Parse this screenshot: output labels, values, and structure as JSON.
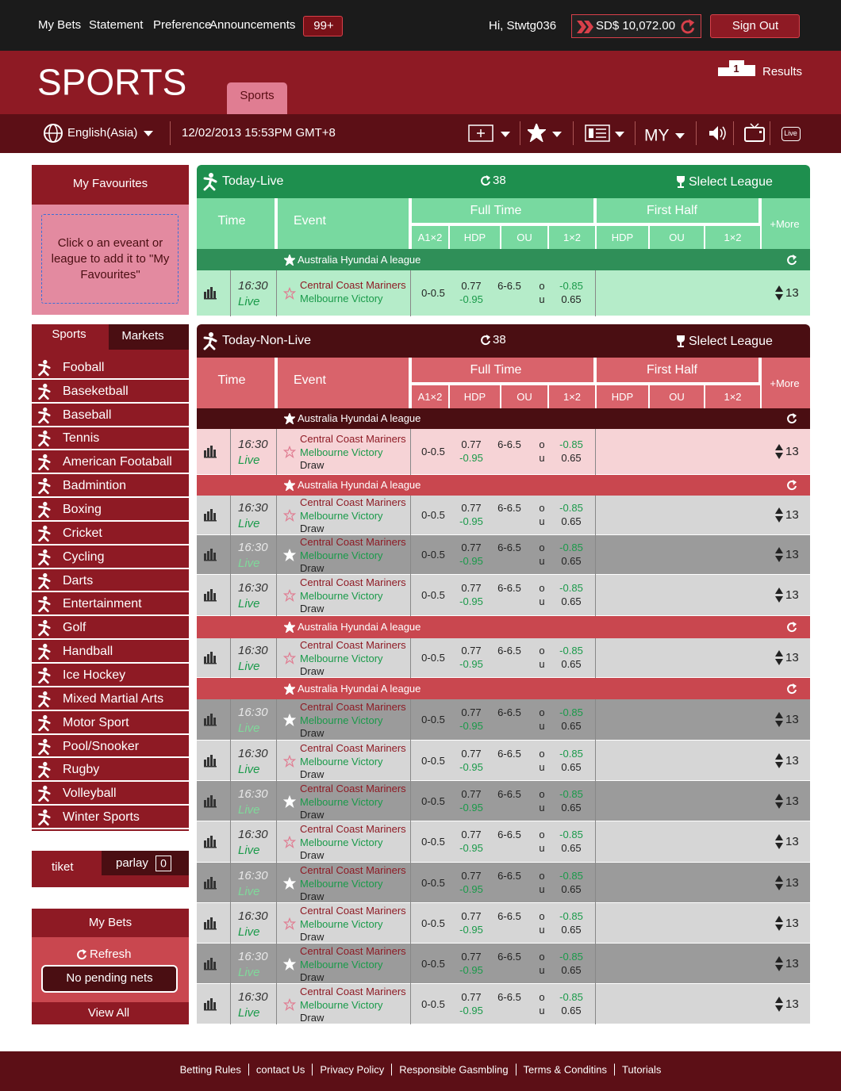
{
  "top_bar": {
    "nav": [
      "My Bets",
      "Statement",
      "Preference",
      "Announcements"
    ],
    "badge": "99+",
    "greeting": "Hi, Stwtg036",
    "balance": "SD$ 10,072.00",
    "sign_out": "Sign Out"
  },
  "banner": {
    "title": "SPORTS",
    "tab": "Sports",
    "results_rank": "1",
    "results": "Results"
  },
  "toolbar": {
    "language": "English(Asia)",
    "datetime": "12/02/2013 15:53PM GMT+8",
    "odds_format": "MY",
    "live": "Live"
  },
  "sidebar": {
    "favourites": {
      "title": "My Favourites",
      "hint": "Click o an eveant or league to add it to \"My Favourites\""
    },
    "tabs": [
      "Sports",
      "Markets"
    ],
    "sports": [
      "Fooball",
      "Baseketball",
      "Baseball",
      "Tennis",
      "American Footaball",
      "Badmintion",
      "Boxing",
      "Cricket",
      "Cycling",
      "Darts",
      "Entertainment",
      "Golf",
      "Handball",
      "Ice Hockey",
      "Mixed Martial Arts",
      "Motor Sport",
      "Pool/Snooker",
      "Rugby",
      "Volleyball",
      "Winter Sports"
    ],
    "bet_slip": {
      "ticket": "tiket",
      "parlay": "parlay",
      "parlay_count": "0"
    },
    "my_bets": {
      "title": "My Bets",
      "refresh": "Refresh",
      "status": "No pending nets",
      "view_all": "View All"
    }
  },
  "panels": [
    {
      "title": "Today-Live",
      "count": "38",
      "select_league": "Slelect League",
      "columns": {
        "time": "Time",
        "event": "Event",
        "full_time": "Full Time",
        "first_half": "First Half",
        "more": "+More",
        "sub": [
          "A1×2",
          "HDP",
          "OU",
          "1×2",
          "HDP",
          "OU",
          "1×2"
        ]
      },
      "leagues": [
        {
          "name": "Australia Hyundai A league",
          "matches": [
            {
              "time": "16:30",
              "status": "Live",
              "home": "Central Coast Mariners",
              "away": "Melbourne Victory",
              "hdp": "0-0.5",
              "hdp_odds": [
                "0.77",
                "-0.95"
              ],
              "ou": "6-6.5",
              "ou_sides": [
                "o",
                "u"
              ],
              "ou_odds": [
                "-0.85",
                "0.65"
              ],
              "more": "13"
            }
          ]
        }
      ]
    },
    {
      "title": "Today-Non-Live",
      "count": "38",
      "select_league": "Slelect League",
      "columns": {
        "time": "Time",
        "event": "Event",
        "full_time": "Full Time",
        "first_half": "First Half",
        "more": "+More",
        "sub": [
          "A1×2",
          "HDP",
          "OU",
          "1×2",
          "HDP",
          "OU",
          "1×2"
        ]
      },
      "leagues": [
        {
          "name": "Australia Hyundai A league",
          "matches": [
            {
              "time": "16:30",
              "status": "Live",
              "home": "Central Coast Mariners",
              "away": "Melbourne Victory",
              "draw": "Draw",
              "hdp": "0-0.5",
              "hdp_odds": [
                "0.77",
                "-0.95"
              ],
              "ou": "6-6.5",
              "ou_sides": [
                "o",
                "u"
              ],
              "ou_odds": [
                "-0.85",
                "0.65"
              ],
              "more": "13"
            }
          ]
        },
        {
          "name": "Australia Hyundai A league",
          "matches": [
            {
              "time": "16:30",
              "status": "Live",
              "home": "Central Coast Mariners",
              "away": "Melbourne Victory",
              "draw": "Draw",
              "hdp": "0-0.5",
              "hdp_odds": [
                "0.77",
                "-0.95"
              ],
              "ou": "6-6.5",
              "ou_sides": [
                "o",
                "u"
              ],
              "ou_odds": [
                "-0.85",
                "0.65"
              ],
              "more": "13"
            },
            {
              "time": "16:30",
              "status": "Live",
              "home": "Central Coast Mariners",
              "away": "Melbourne Victory",
              "draw": "Draw",
              "hdp": "0-0.5",
              "hdp_odds": [
                "0.77",
                "-0.95"
              ],
              "ou": "6-6.5",
              "ou_sides": [
                "o",
                "u"
              ],
              "ou_odds": [
                "-0.85",
                "0.65"
              ],
              "more": "13"
            },
            {
              "time": "16:30",
              "status": "Live",
              "home": "Central Coast Mariners",
              "away": "Melbourne Victory",
              "draw": "Draw",
              "hdp": "0-0.5",
              "hdp_odds": [
                "0.77",
                "-0.95"
              ],
              "ou": "6-6.5",
              "ou_sides": [
                "o",
                "u"
              ],
              "ou_odds": [
                "-0.85",
                "0.65"
              ],
              "more": "13"
            }
          ]
        },
        {
          "name": "Australia Hyundai A league",
          "matches": [
            {
              "time": "16:30",
              "status": "Live",
              "home": "Central Coast Mariners",
              "away": "Melbourne Victory",
              "draw": "Draw",
              "hdp": "0-0.5",
              "hdp_odds": [
                "0.77",
                "-0.95"
              ],
              "ou": "6-6.5",
              "ou_sides": [
                "o",
                "u"
              ],
              "ou_odds": [
                "-0.85",
                "0.65"
              ],
              "more": "13"
            }
          ]
        },
        {
          "name": "Australia Hyundai A league",
          "matches": [
            {
              "time": "16:30",
              "status": "Live",
              "home": "Central Coast Mariners",
              "away": "Melbourne Victory",
              "draw": "Draw",
              "hdp": "0-0.5",
              "hdp_odds": [
                "0.77",
                "-0.95"
              ],
              "ou": "6-6.5",
              "ou_sides": [
                "o",
                "u"
              ],
              "ou_odds": [
                "-0.85",
                "0.65"
              ],
              "more": "13"
            },
            {
              "time": "16:30",
              "status": "Live",
              "home": "Central Coast Mariners",
              "away": "Melbourne Victory",
              "draw": "Draw",
              "hdp": "0-0.5",
              "hdp_odds": [
                "0.77",
                "-0.95"
              ],
              "ou": "6-6.5",
              "ou_sides": [
                "o",
                "u"
              ],
              "ou_odds": [
                "-0.85",
                "0.65"
              ],
              "more": "13"
            },
            {
              "time": "16:30",
              "status": "Live",
              "home": "Central Coast Mariners",
              "away": "Melbourne Victory",
              "draw": "Draw",
              "hdp": "0-0.5",
              "hdp_odds": [
                "0.77",
                "-0.95"
              ],
              "ou": "6-6.5",
              "ou_sides": [
                "o",
                "u"
              ],
              "ou_odds": [
                "-0.85",
                "0.65"
              ],
              "more": "13"
            },
            {
              "time": "16:30",
              "status": "Live",
              "home": "Central Coast Mariners",
              "away": "Melbourne Victory",
              "draw": "Draw",
              "hdp": "0-0.5",
              "hdp_odds": [
                "0.77",
                "-0.95"
              ],
              "ou": "6-6.5",
              "ou_sides": [
                "o",
                "u"
              ],
              "ou_odds": [
                "-0.85",
                "0.65"
              ],
              "more": "13"
            },
            {
              "time": "16:30",
              "status": "Live",
              "home": "Central Coast Mariners",
              "away": "Melbourne Victory",
              "draw": "Draw",
              "hdp": "0-0.5",
              "hdp_odds": [
                "0.77",
                "-0.95"
              ],
              "ou": "6-6.5",
              "ou_sides": [
                "o",
                "u"
              ],
              "ou_odds": [
                "-0.85",
                "0.65"
              ],
              "more": "13"
            },
            {
              "time": "16:30",
              "status": "Live",
              "home": "Central Coast Mariners",
              "away": "Melbourne Victory",
              "draw": "Draw",
              "hdp": "0-0.5",
              "hdp_odds": [
                "0.77",
                "-0.95"
              ],
              "ou": "6-6.5",
              "ou_sides": [
                "o",
                "u"
              ],
              "ou_odds": [
                "-0.85",
                "0.65"
              ],
              "more": "13"
            },
            {
              "time": "16:30",
              "status": "Live",
              "home": "Central Coast Mariners",
              "away": "Melbourne Victory",
              "draw": "Draw",
              "hdp": "0-0.5",
              "hdp_odds": [
                "0.77",
                "-0.95"
              ],
              "ou": "6-6.5",
              "ou_sides": [
                "o",
                "u"
              ],
              "ou_odds": [
                "-0.85",
                "0.65"
              ],
              "more": "13"
            },
            {
              "time": "16:30",
              "status": "Live",
              "home": "Central Coast Mariners",
              "away": "Melbourne Victory",
              "draw": "Draw",
              "hdp": "0-0.5",
              "hdp_odds": [
                "0.77",
                "-0.95"
              ],
              "ou": "6-6.5",
              "ou_sides": [
                "o",
                "u"
              ],
              "ou_odds": [
                "-0.85",
                "0.65"
              ],
              "more": "13"
            }
          ]
        }
      ]
    }
  ],
  "footer": {
    "links": [
      "Betting Rules",
      "contact Us",
      "Privacy Policy",
      "Responsible Gasmbling",
      "Terms & Conditins",
      "Tutorials"
    ]
  }
}
